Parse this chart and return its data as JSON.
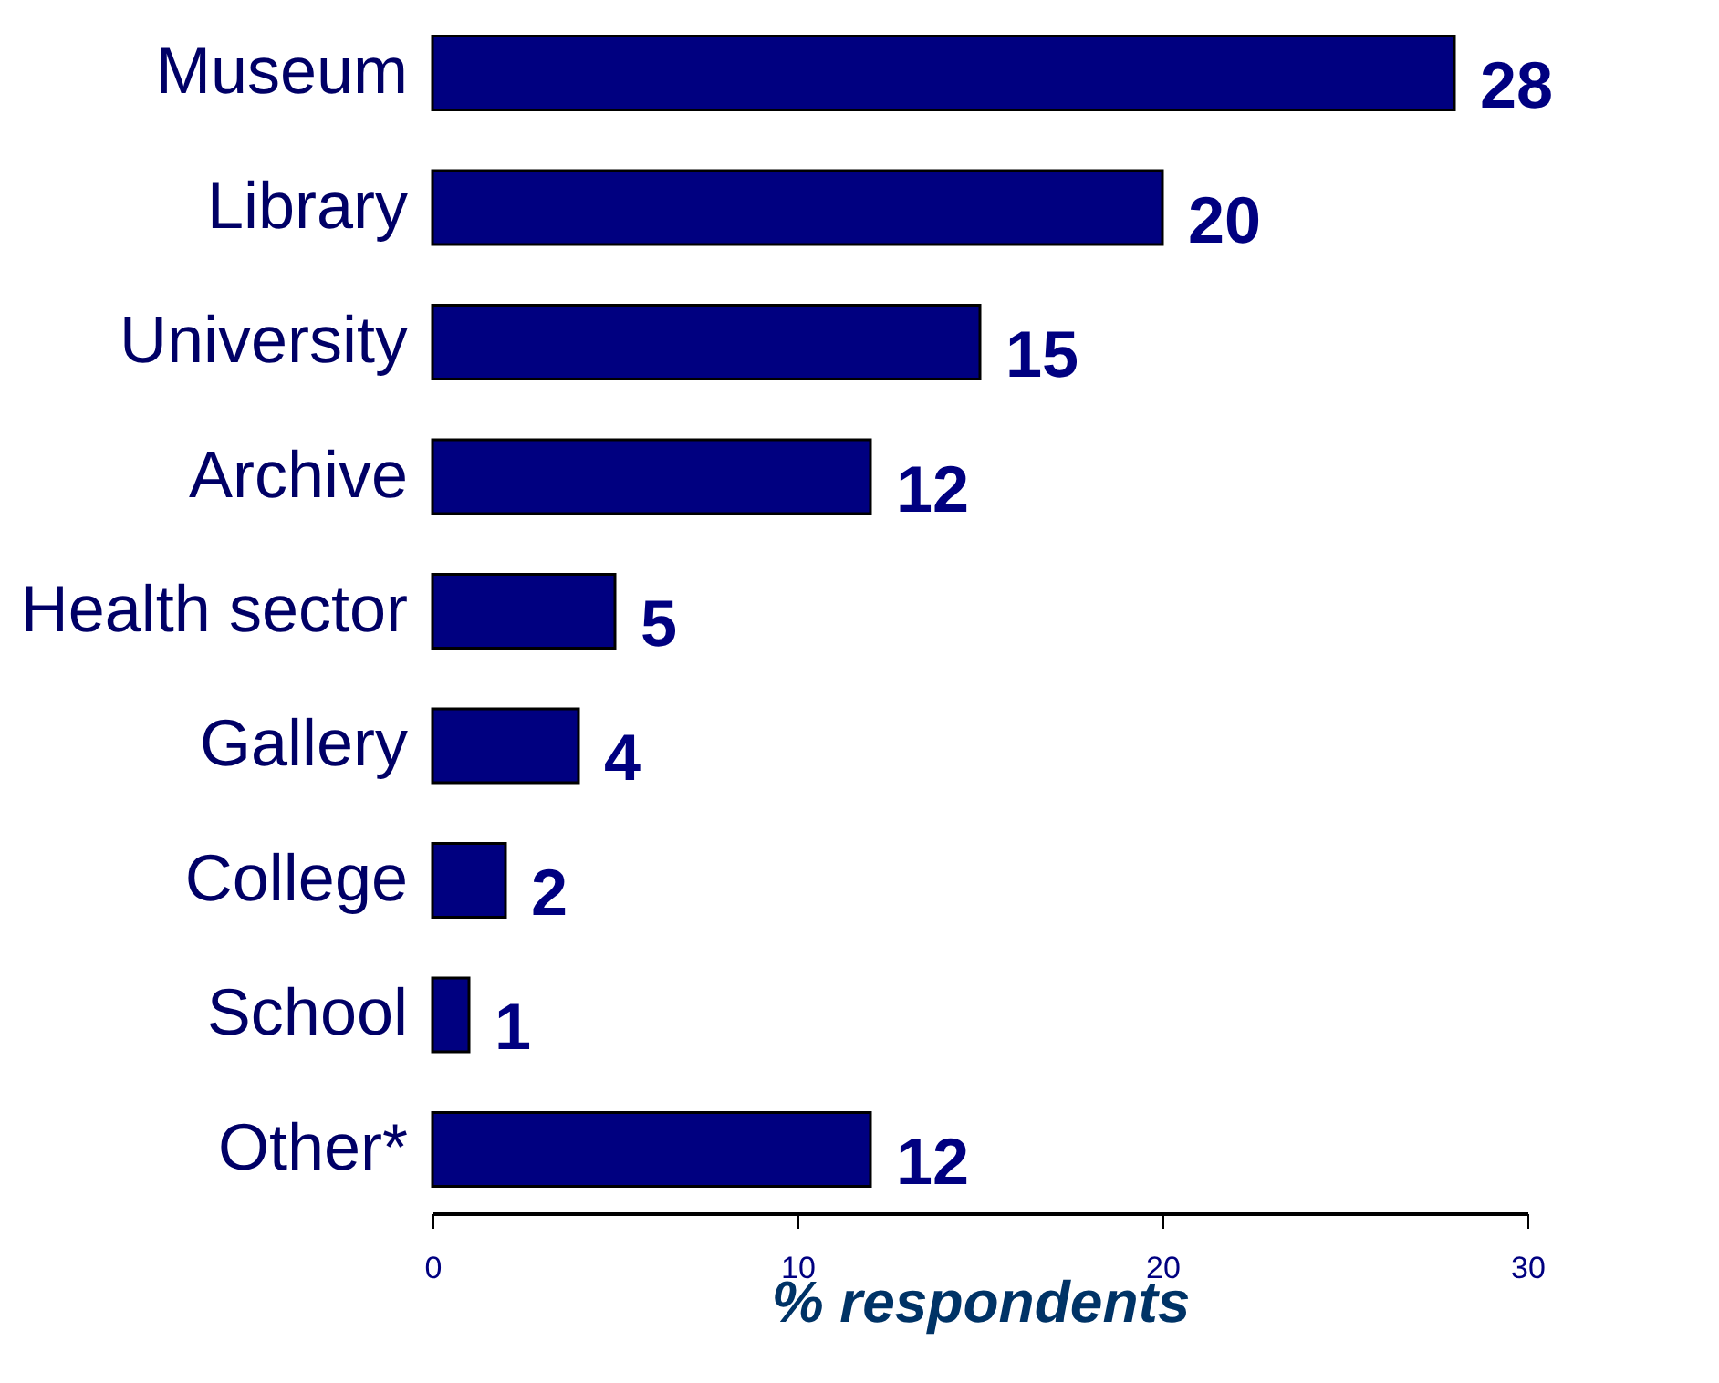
{
  "chart_data": {
    "type": "bar",
    "orientation": "horizontal",
    "categories": [
      "Museum",
      "Library",
      "University",
      "Archive",
      "Health sector",
      "Gallery",
      "College",
      "School",
      "Other*"
    ],
    "values": [
      28,
      20,
      15,
      12,
      5,
      4,
      2,
      1,
      12
    ],
    "color": "#000080",
    "xlim": [
      0,
      30
    ],
    "xticks": [
      0,
      10,
      20,
      30
    ],
    "xlabel": "% respondents",
    "data_labels": true
  }
}
